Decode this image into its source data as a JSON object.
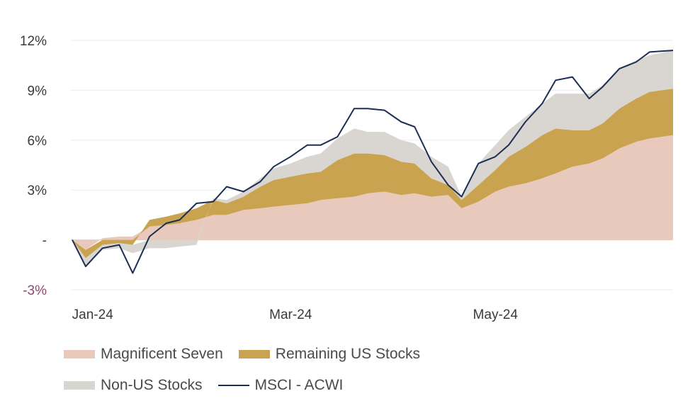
{
  "chart_data": {
    "type": "area",
    "stacked": true,
    "title": "",
    "xlabel": "",
    "ylabel": "",
    "y_unit": "%",
    "ylim": [
      -3,
      12
    ],
    "y_ticks": [
      {
        "value": 12,
        "label": "12%"
      },
      {
        "value": 9,
        "label": "9%"
      },
      {
        "value": 6,
        "label": "6%"
      },
      {
        "value": 3,
        "label": "3%"
      },
      {
        "value": 0,
        "label": "-"
      },
      {
        "value": -3,
        "label": "-3%"
      }
    ],
    "x_ticks": [
      {
        "date": "2024-01-02",
        "label": "Jan-24"
      },
      {
        "date": "2024-03-01",
        "label": "Mar-24"
      },
      {
        "date": "2024-05-01",
        "label": "May-24"
      }
    ],
    "x": [
      "2024-01-01",
      "2024-01-05",
      "2024-01-10",
      "2024-01-15",
      "2024-01-19",
      "2024-01-24",
      "2024-01-29",
      "2024-02-02",
      "2024-02-07",
      "2024-02-12",
      "2024-02-16",
      "2024-02-21",
      "2024-02-26",
      "2024-03-01",
      "2024-03-06",
      "2024-03-11",
      "2024-03-15",
      "2024-03-20",
      "2024-03-25",
      "2024-03-29",
      "2024-04-03",
      "2024-04-08",
      "2024-04-12",
      "2024-04-17",
      "2024-04-22",
      "2024-04-26",
      "2024-05-01",
      "2024-05-06",
      "2024-05-10",
      "2024-05-15",
      "2024-05-20",
      "2024-05-24",
      "2024-05-29",
      "2024-06-03",
      "2024-06-07",
      "2024-06-12",
      "2024-06-17",
      "2024-06-21",
      "2024-06-28"
    ],
    "series": [
      {
        "name": "Magnificent Seven",
        "color": "#e8c9bb",
        "values": [
          0,
          -0.6,
          0.1,
          0.2,
          0.2,
          0.8,
          0.9,
          1.0,
          1.2,
          1.5,
          1.5,
          1.8,
          1.9,
          2.0,
          2.1,
          2.2,
          2.4,
          2.5,
          2.6,
          2.8,
          2.9,
          2.7,
          2.8,
          2.6,
          2.7,
          1.9,
          2.3,
          2.9,
          3.2,
          3.4,
          3.7,
          4.0,
          4.4,
          4.6,
          4.9,
          5.5,
          5.9,
          6.1,
          6.3
        ]
      },
      {
        "name": "Remaining US Stocks",
        "color": "#c9a350",
        "values": [
          0,
          -0.5,
          -0.3,
          -0.2,
          -0.3,
          0.4,
          0.5,
          0.6,
          0.7,
          0.9,
          0.7,
          0.8,
          1.3,
          1.6,
          1.7,
          1.8,
          1.7,
          2.3,
          2.6,
          2.4,
          2.2,
          2.0,
          1.8,
          1.1,
          0.6,
          0.5,
          1.0,
          1.3,
          1.8,
          2.2,
          2.6,
          2.7,
          2.2,
          2.0,
          2.1,
          2.4,
          2.6,
          2.8,
          2.8
        ]
      },
      {
        "name": "Non-US Stocks",
        "color": "#d9d6d2",
        "values": [
          0,
          -0.5,
          -0.3,
          -0.3,
          -0.5,
          -0.5,
          -0.5,
          -0.4,
          -0.3,
          0.1,
          0.2,
          0.3,
          0.5,
          0.7,
          0.8,
          1.0,
          1.1,
          1.3,
          1.5,
          1.3,
          1.4,
          1.3,
          1.2,
          1.3,
          1.1,
          0.2,
          1.3,
          1.5,
          1.6,
          1.8,
          1.9,
          2.1,
          2.2,
          2.2,
          2.3,
          2.4,
          2.3,
          2.2,
          2.3
        ]
      },
      {
        "name": "MSCI - ACWI",
        "color": "#1c2e52",
        "kind": "line",
        "values": [
          0,
          -1.6,
          -0.5,
          -0.3,
          -2.0,
          0.2,
          1.0,
          1.2,
          2.2,
          2.3,
          3.2,
          2.9,
          3.5,
          4.4,
          5.0,
          5.7,
          5.7,
          6.2,
          7.9,
          7.9,
          7.8,
          7.1,
          6.8,
          4.7,
          3.3,
          2.6,
          4.6,
          5.0,
          5.7,
          7.1,
          8.2,
          9.6,
          9.8,
          8.5,
          9.2,
          10.3,
          10.7,
          11.3,
          11.4
        ]
      }
    ],
    "legend_position": "bottom-left",
    "grid": true
  },
  "legend": {
    "items": [
      {
        "label": "Magnificent Seven",
        "color": "#e8c9bb",
        "kind": "area"
      },
      {
        "label": "Remaining US Stocks",
        "color": "#c9a350",
        "kind": "area"
      },
      {
        "label": "Non-US Stocks",
        "color": "#d9d6d2",
        "kind": "area"
      },
      {
        "label": "MSCI - ACWI",
        "color": "#1c2e52",
        "kind": "line"
      }
    ]
  }
}
